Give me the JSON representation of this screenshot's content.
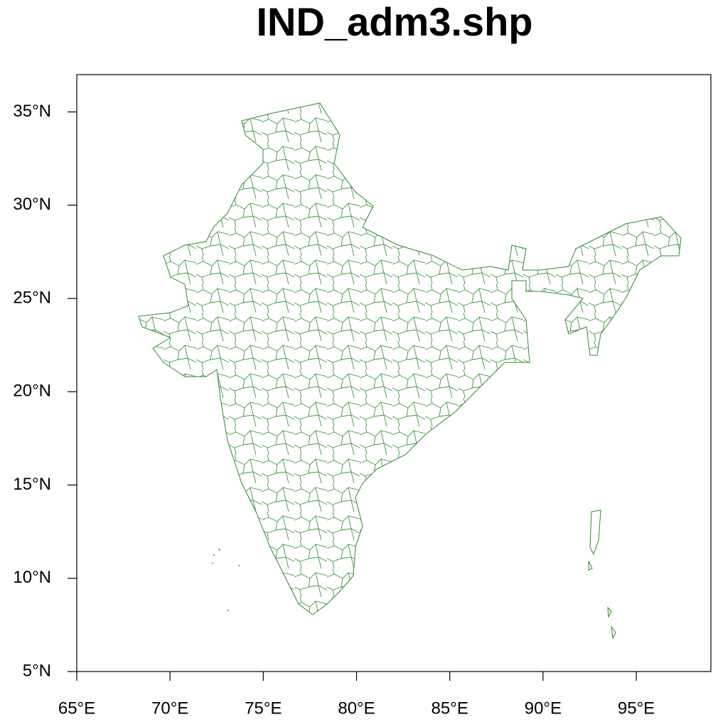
{
  "chart_data": {
    "type": "map",
    "title": "IND_adm3.shp",
    "xlim": [
      65,
      99
    ],
    "ylim": [
      5,
      37
    ],
    "xticks": [
      {
        "value": 65,
        "label": "65°E"
      },
      {
        "value": 70,
        "label": "70°E"
      },
      {
        "value": 75,
        "label": "75°E"
      },
      {
        "value": 80,
        "label": "80°E"
      },
      {
        "value": 85,
        "label": "85°E"
      },
      {
        "value": 90,
        "label": "90°E"
      },
      {
        "value": 95,
        "label": "95°E"
      }
    ],
    "yticks": [
      {
        "value": 5,
        "label": "5°N"
      },
      {
        "value": 10,
        "label": "10°N"
      },
      {
        "value": 15,
        "label": "15°N"
      },
      {
        "value": 20,
        "label": "20°N"
      },
      {
        "value": 25,
        "label": "25°N"
      },
      {
        "value": 30,
        "label": "30°N"
      },
      {
        "value": 35,
        "label": "35°N"
      }
    ],
    "color": "#2e8b2e"
  }
}
